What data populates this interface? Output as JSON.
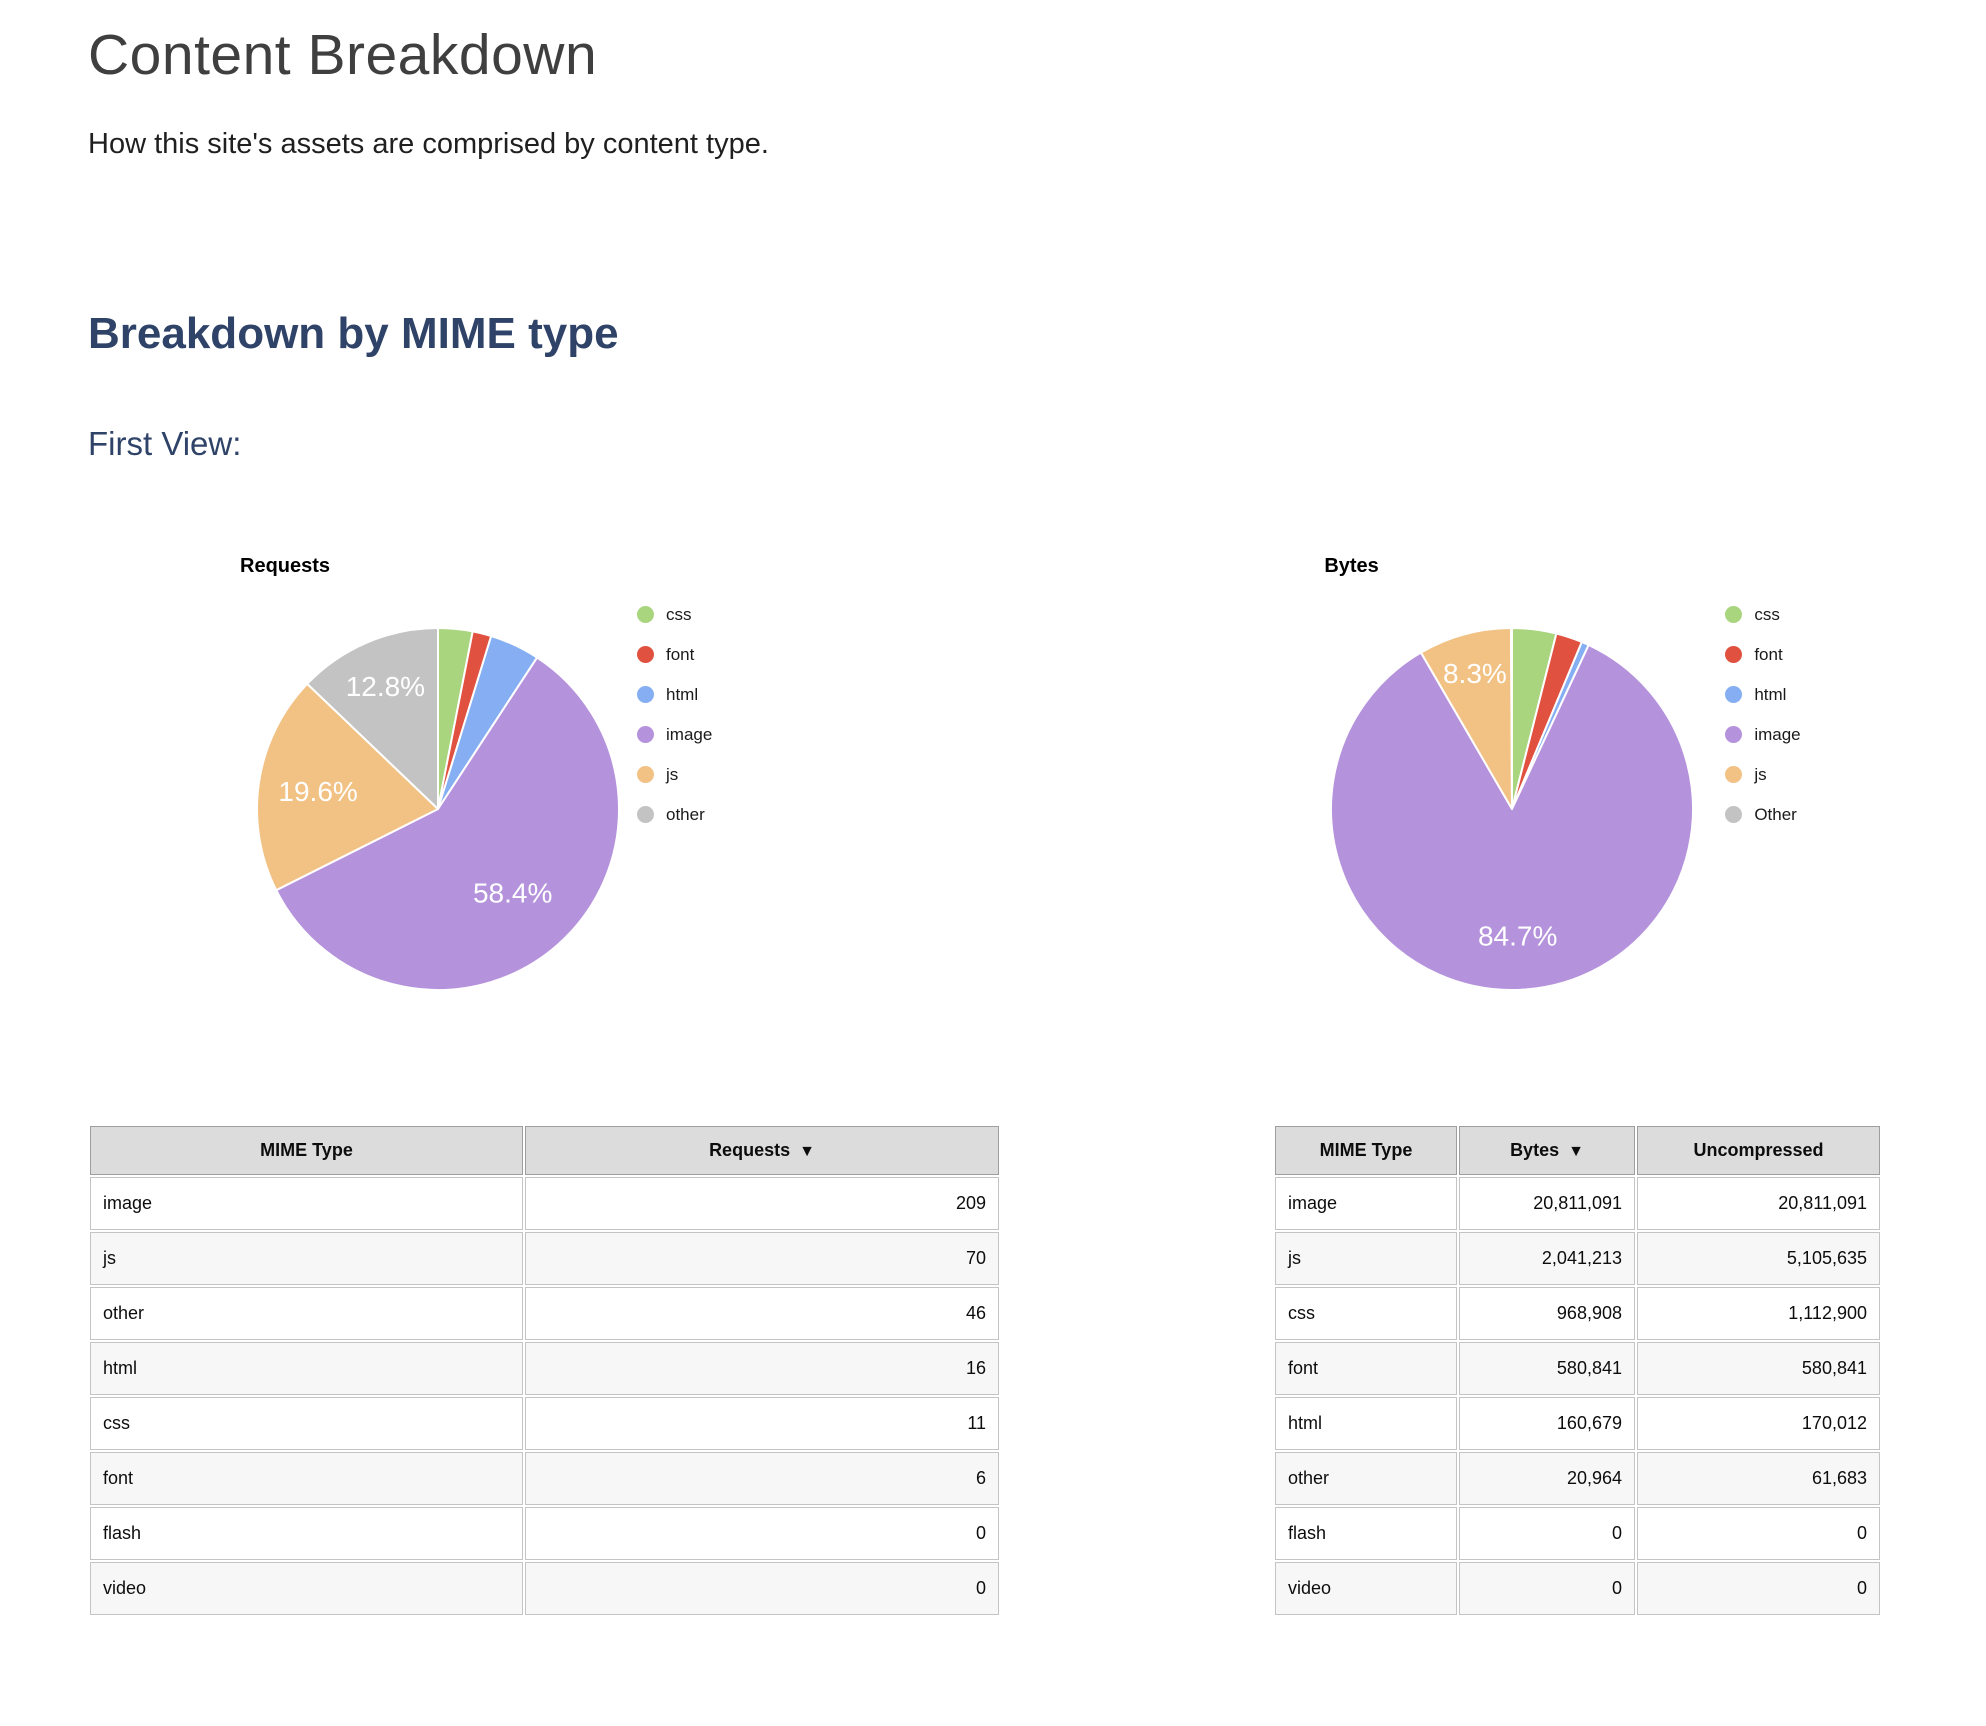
{
  "page": {
    "title": "Content Breakdown",
    "subtitle": "How this site's assets are comprised by content type.",
    "section_heading": "Breakdown by MIME type",
    "view_label": "First View:"
  },
  "colors": {
    "css": "#a9d57f",
    "font": "#e0523f",
    "html": "#85aff2",
    "image": "#b593dc",
    "js": "#f2c184",
    "other": "#c3c3c3",
    "heading": "#2f4368",
    "table_header_bg": "#dcdcdc"
  },
  "chart_data": [
    {
      "type": "pie",
      "title": "Requests",
      "legend_position": "right",
      "slices": [
        {
          "label": "css",
          "legend_label": "css",
          "value": 11,
          "pct": 3.1,
          "color": "#a9d57f",
          "pct_label": "",
          "label_r": 0.65
        },
        {
          "label": "font",
          "legend_label": "font",
          "value": 6,
          "pct": 1.7,
          "color": "#e0523f",
          "pct_label": "",
          "label_r": 0.65
        },
        {
          "label": "html",
          "legend_label": "html",
          "value": 16,
          "pct": 4.5,
          "color": "#85aff2",
          "pct_label": "",
          "label_r": 0.65
        },
        {
          "label": "image",
          "legend_label": "image",
          "value": 209,
          "pct": 58.4,
          "color": "#b593dc",
          "pct_label": "58.4%",
          "label_r": 0.62
        },
        {
          "label": "js",
          "legend_label": "js",
          "value": 70,
          "pct": 19.6,
          "color": "#f2c184",
          "pct_label": "19.6%",
          "label_r": 0.67
        },
        {
          "label": "other",
          "legend_label": "other",
          "value": 46,
          "pct": 12.8,
          "color": "#c3c3c3",
          "pct_label": "12.8%",
          "label_r": 0.74
        }
      ]
    },
    {
      "type": "pie",
      "title": "Bytes",
      "legend_position": "right",
      "slices": [
        {
          "label": "css",
          "legend_label": "css",
          "value": 968908,
          "pct": 3.9,
          "color": "#a9d57f",
          "pct_label": "",
          "label_r": 0.65
        },
        {
          "label": "font",
          "legend_label": "font",
          "value": 580841,
          "pct": 2.4,
          "color": "#e0523f",
          "pct_label": "",
          "label_r": 0.65
        },
        {
          "label": "html",
          "legend_label": "html",
          "value": 160679,
          "pct": 0.7,
          "color": "#85aff2",
          "pct_label": "",
          "label_r": 0.65
        },
        {
          "label": "image",
          "legend_label": "image",
          "value": 20811091,
          "pct": 84.7,
          "color": "#b593dc",
          "pct_label": "84.7%",
          "label_r": 0.7
        },
        {
          "label": "js",
          "legend_label": "js",
          "value": 2041213,
          "pct": 8.3,
          "color": "#f2c184",
          "pct_label": "8.3%",
          "label_r": 0.78
        },
        {
          "label": "other",
          "legend_label": "Other",
          "value": 20964,
          "pct": 0.1,
          "color": "#c3c3c3",
          "pct_label": "",
          "label_r": 0.65
        }
      ]
    }
  ],
  "tables": [
    {
      "name": "requests-table",
      "headers": [
        {
          "label": "MIME Type",
          "sort": ""
        },
        {
          "label": "Requests",
          "sort": "▼"
        }
      ],
      "align": [
        "left",
        "right"
      ],
      "rows": [
        [
          "image",
          "209"
        ],
        [
          "js",
          "70"
        ],
        [
          "other",
          "46"
        ],
        [
          "html",
          "16"
        ],
        [
          "css",
          "11"
        ],
        [
          "font",
          "6"
        ],
        [
          "flash",
          "0"
        ],
        [
          "video",
          "0"
        ]
      ]
    },
    {
      "name": "bytes-table",
      "headers": [
        {
          "label": "MIME Type",
          "sort": ""
        },
        {
          "label": "Bytes",
          "sort": "▼"
        },
        {
          "label": "Uncompressed",
          "sort": ""
        }
      ],
      "align": [
        "left",
        "right",
        "right"
      ],
      "rows": [
        [
          "image",
          "20,811,091",
          "20,811,091"
        ],
        [
          "js",
          "2,041,213",
          "5,105,635"
        ],
        [
          "css",
          "968,908",
          "1,112,900"
        ],
        [
          "font",
          "580,841",
          "580,841"
        ],
        [
          "html",
          "160,679",
          "170,012"
        ],
        [
          "other",
          "20,964",
          "61,683"
        ],
        [
          "flash",
          "0",
          "0"
        ],
        [
          "video",
          "0",
          "0"
        ]
      ]
    }
  ]
}
